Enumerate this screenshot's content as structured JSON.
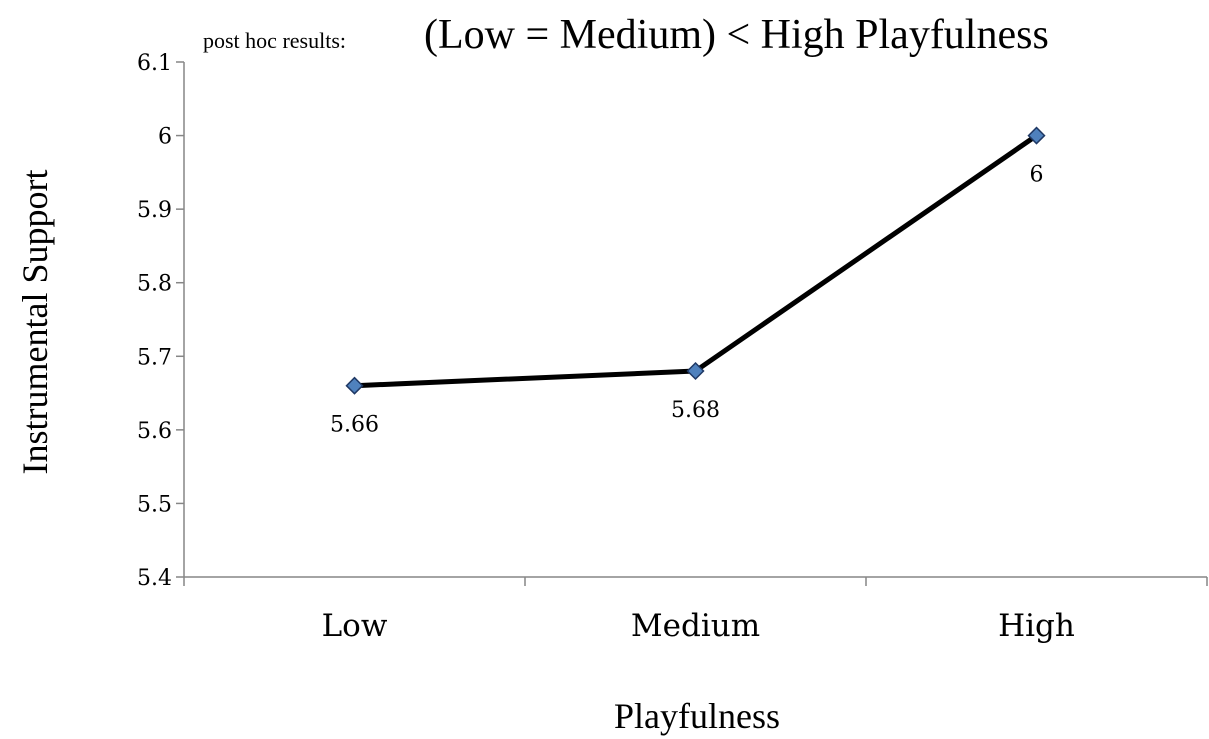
{
  "chart_data": {
    "type": "line",
    "title_prefix": "post hoc results:",
    "title": "(Low = Medium) < High Playfulness",
    "xlabel": "Playfulness",
    "ylabel": "Instrumental Support",
    "categories": [
      "Low",
      "Medium",
      "High"
    ],
    "series": [
      {
        "values": [
          5.66,
          5.68,
          6
        ],
        "data_labels": [
          "5.66",
          "5.68",
          "6"
        ]
      }
    ],
    "ylim": [
      5.4,
      6.1
    ],
    "yticks": [
      5.4,
      5.5,
      5.6,
      5.7,
      5.8,
      5.9,
      6,
      6.1
    ],
    "ytick_labels": [
      "5.4",
      "5.5",
      "5.6",
      "5.7",
      "5.8",
      "5.9",
      "6",
      "6.1"
    ],
    "grid": false,
    "legend": "none",
    "colors": {
      "line": "#000000",
      "marker_fill": "#4f81bd",
      "marker_stroke": "#1f3864",
      "axis": "#868686"
    }
  }
}
